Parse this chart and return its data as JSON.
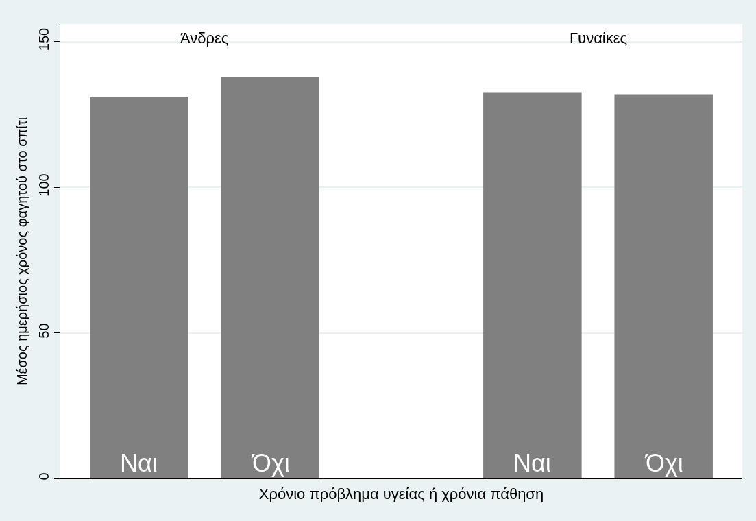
{
  "chart_data": {
    "type": "bar",
    "xlabel": "Χρόνιο πρόβλημα υγείας ή χρόνια πάθηση",
    "ylabel": "Μέσος ημερήσιος χρόνος φαγητού στο σπίτι",
    "categories": [
      "Ναι",
      "Όχι",
      null,
      "Ναι",
      "Όχι"
    ],
    "values": [
      130.8,
      137.9,
      null,
      132.6,
      131.9
    ],
    "color": "#808080",
    "annotations": [
      "Άνδρες",
      "Γυναίκες"
    ],
    "ylim": [
      0,
      156
    ],
    "yticks": [
      0,
      50,
      100,
      150
    ],
    "grid": "y",
    "legend": false
  }
}
